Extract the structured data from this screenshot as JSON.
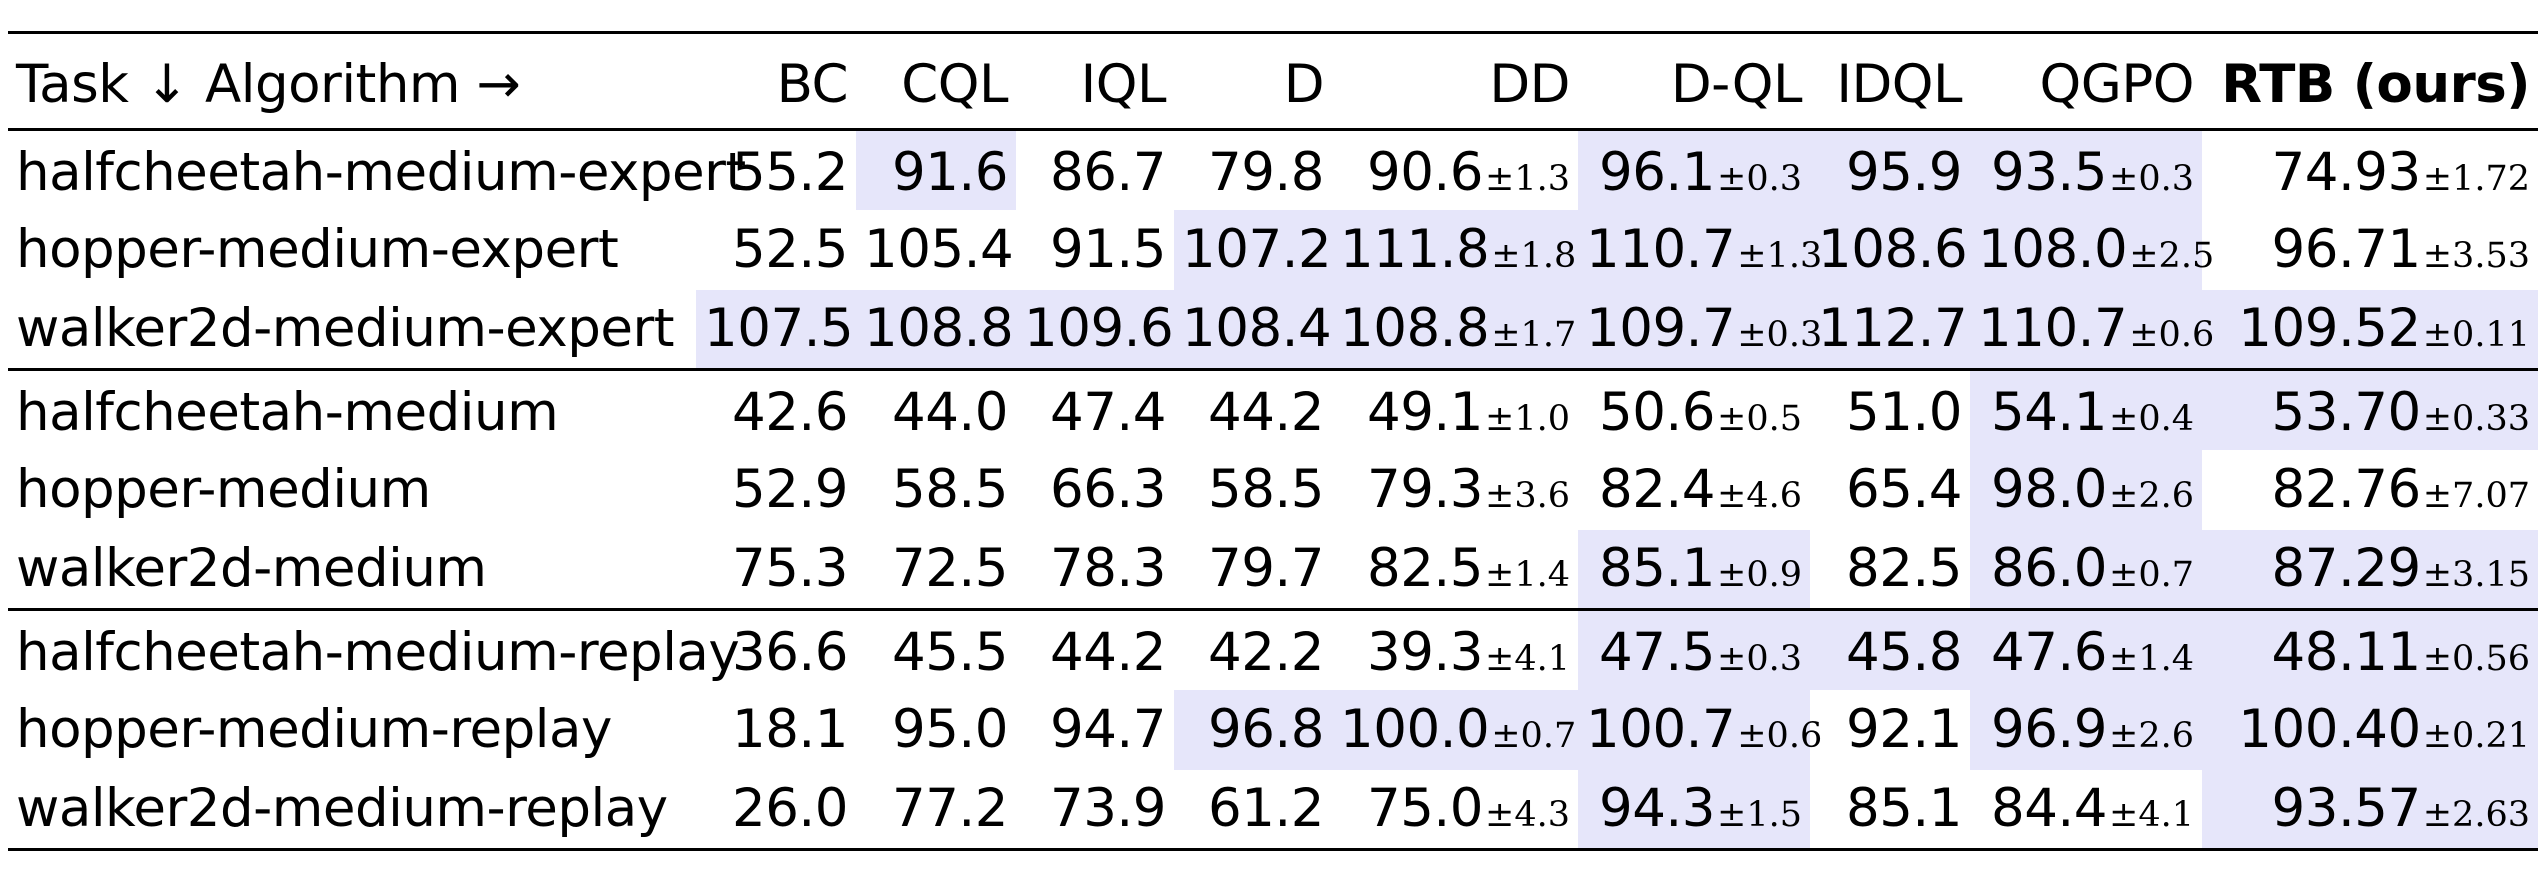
{
  "table": {
    "headers": [
      "Task ↓ Algorithm →",
      "BC",
      "CQL",
      "IQL",
      "D",
      "DD",
      "D-QL",
      "IDQL",
      "QGPO",
      "RTB (ours)"
    ],
    "groups": [
      [
        {
          "task": "halfcheetah-medium-expert",
          "cells": [
            {
              "v": "55.2"
            },
            {
              "v": "91.6",
              "hl": true
            },
            {
              "v": "86.7"
            },
            {
              "v": "79.8"
            },
            {
              "v": "90.6",
              "s": "±1.3"
            },
            {
              "v": "96.1",
              "s": "±0.3",
              "hl": true
            },
            {
              "v": "95.9",
              "hl": true
            },
            {
              "v": "93.5",
              "s": "±0.3",
              "hl": true
            },
            {
              "v": "74.93",
              "s": "±1.72"
            }
          ]
        },
        {
          "task": "hopper-medium-expert",
          "cells": [
            {
              "v": "52.5"
            },
            {
              "v": "105.4"
            },
            {
              "v": "91.5"
            },
            {
              "v": "107.2",
              "hl": true
            },
            {
              "v": "111.8",
              "s": "±1.8",
              "hl": true
            },
            {
              "v": "110.7",
              "s": "±1.3",
              "hl": true
            },
            {
              "v": "108.6",
              "hl": true
            },
            {
              "v": "108.0",
              "s": "±2.5",
              "hl": true
            },
            {
              "v": "96.71",
              "s": "±3.53"
            }
          ]
        },
        {
          "task": "walker2d-medium-expert",
          "cells": [
            {
              "v": "107.5",
              "hl": true
            },
            {
              "v": "108.8",
              "hl": true
            },
            {
              "v": "109.6",
              "hl": true
            },
            {
              "v": "108.4",
              "hl": true
            },
            {
              "v": "108.8",
              "s": "±1.7",
              "hl": true
            },
            {
              "v": "109.7",
              "s": "±0.3",
              "hl": true
            },
            {
              "v": "112.7",
              "hl": true
            },
            {
              "v": "110.7",
              "s": "±0.6",
              "hl": true
            },
            {
              "v": "109.52",
              "s": "±0.11",
              "hl": true
            }
          ]
        }
      ],
      [
        {
          "task": "halfcheetah-medium",
          "cells": [
            {
              "v": "42.6"
            },
            {
              "v": "44.0"
            },
            {
              "v": "47.4"
            },
            {
              "v": "44.2"
            },
            {
              "v": "49.1",
              "s": "±1.0"
            },
            {
              "v": "50.6",
              "s": "±0.5"
            },
            {
              "v": "51.0"
            },
            {
              "v": "54.1",
              "s": "±0.4",
              "hl": true
            },
            {
              "v": "53.70",
              "s": "±0.33",
              "hl": true
            }
          ]
        },
        {
          "task": "hopper-medium",
          "cells": [
            {
              "v": "52.9"
            },
            {
              "v": "58.5"
            },
            {
              "v": "66.3"
            },
            {
              "v": "58.5"
            },
            {
              "v": "79.3",
              "s": "±3.6"
            },
            {
              "v": "82.4",
              "s": "±4.6"
            },
            {
              "v": "65.4"
            },
            {
              "v": "98.0",
              "s": "±2.6",
              "hl": true
            },
            {
              "v": "82.76",
              "s": "±7.07"
            }
          ]
        },
        {
          "task": "walker2d-medium",
          "cells": [
            {
              "v": "75.3"
            },
            {
              "v": "72.5"
            },
            {
              "v": "78.3"
            },
            {
              "v": "79.7"
            },
            {
              "v": "82.5",
              "s": "±1.4"
            },
            {
              "v": "85.1",
              "s": "±0.9",
              "hl": true
            },
            {
              "v": "82.5"
            },
            {
              "v": "86.0",
              "s": "±0.7",
              "hl": true
            },
            {
              "v": "87.29",
              "s": "±3.15",
              "hl": true
            }
          ]
        }
      ],
      [
        {
          "task": "halfcheetah-medium-replay",
          "cells": [
            {
              "v": "36.6"
            },
            {
              "v": "45.5"
            },
            {
              "v": "44.2"
            },
            {
              "v": "42.2"
            },
            {
              "v": "39.3",
              "s": "±4.1"
            },
            {
              "v": "47.5",
              "s": "±0.3",
              "hl": true
            },
            {
              "v": "45.8",
              "hl": true
            },
            {
              "v": "47.6",
              "s": "±1.4",
              "hl": true
            },
            {
              "v": "48.11",
              "s": "±0.56",
              "hl": true
            }
          ]
        },
        {
          "task": "hopper-medium-replay",
          "cells": [
            {
              "v": "18.1"
            },
            {
              "v": "95.0"
            },
            {
              "v": "94.7"
            },
            {
              "v": "96.8",
              "hl": true
            },
            {
              "v": "100.0",
              "s": "±0.7",
              "hl": true
            },
            {
              "v": "100.7",
              "s": "±0.6",
              "hl": true
            },
            {
              "v": "92.1"
            },
            {
              "v": "96.9",
              "s": "±2.6",
              "hl": true
            },
            {
              "v": "100.40",
              "s": "±0.21",
              "hl": true
            }
          ]
        },
        {
          "task": "walker2d-medium-replay",
          "cells": [
            {
              "v": "26.0"
            },
            {
              "v": "77.2"
            },
            {
              "v": "73.9"
            },
            {
              "v": "61.2"
            },
            {
              "v": "75.0",
              "s": "±4.3"
            },
            {
              "v": "94.3",
              "s": "±1.5",
              "hl": true
            },
            {
              "v": "85.1"
            },
            {
              "v": "84.4",
              "s": "±4.1"
            },
            {
              "v": "93.57",
              "s": "±2.63",
              "hl": true
            }
          ]
        }
      ]
    ]
  },
  "colors": {
    "highlight": "#e6e6fa",
    "rule": "#000000"
  }
}
